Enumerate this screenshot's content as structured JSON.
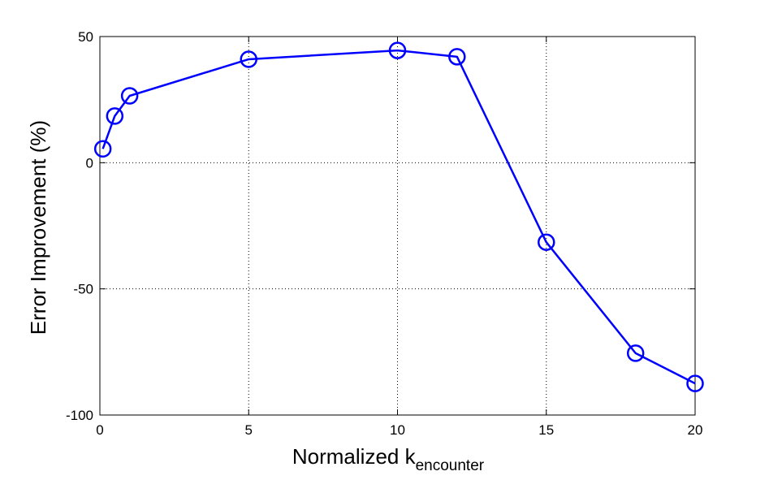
{
  "chart_data": {
    "type": "line",
    "title": "",
    "xlabel": "Normalized k",
    "xlabel_subscript": "encounter",
    "ylabel": "Error Improvement (%)",
    "xlim": [
      0,
      20
    ],
    "ylim": [
      -100,
      50
    ],
    "xticks": [
      0,
      5,
      10,
      15,
      20
    ],
    "yticks": [
      -100,
      -50,
      0,
      50
    ],
    "grid": true,
    "legend": "none",
    "series": [
      {
        "color": "#0000ff",
        "marker": "circle",
        "x": [
          0.1,
          0.5,
          1,
          5,
          10,
          12,
          15,
          18,
          20
        ],
        "y": [
          5.5,
          18.5,
          26.5,
          41,
          44.5,
          42,
          -31.5,
          -75.5,
          -87.5
        ]
      }
    ]
  }
}
